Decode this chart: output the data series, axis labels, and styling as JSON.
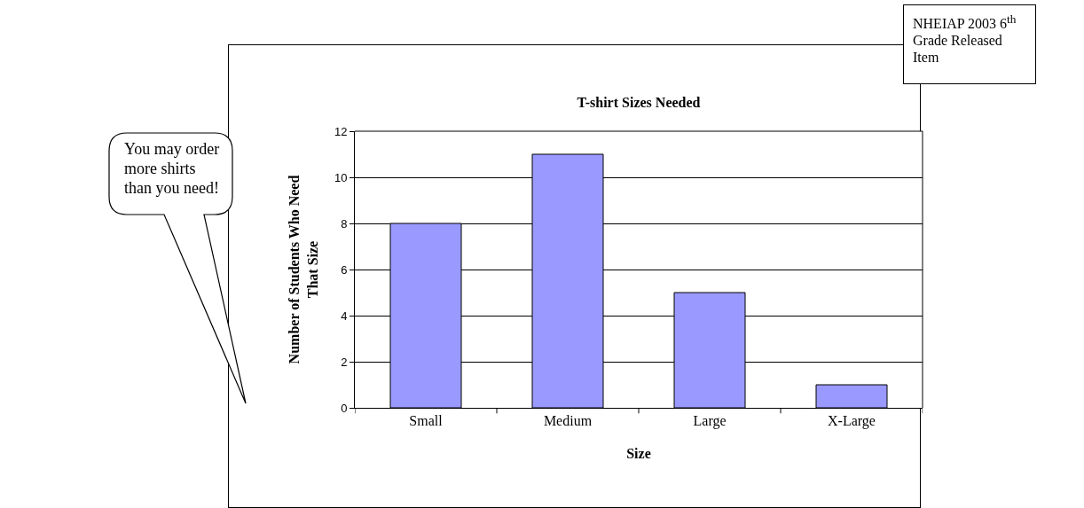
{
  "chart_data": {
    "type": "bar",
    "title": "T-shirt Sizes Needed",
    "xlabel": "Size",
    "ylabel": "Number of Students Who Need That Size",
    "categories": [
      "Small",
      "Medium",
      "Large",
      "X-Large"
    ],
    "values": [
      8,
      11,
      5,
      1
    ],
    "color": "#9999ff",
    "ylim": [
      0,
      12
    ],
    "yticks": [
      0,
      2,
      4,
      6,
      8,
      10,
      12
    ],
    "grid": "y",
    "annotations": [
      "You may order more shirts than you need!",
      "NHEIAP 2003 6$^{th}$ Grade Released Item"
    ]
  }
}
